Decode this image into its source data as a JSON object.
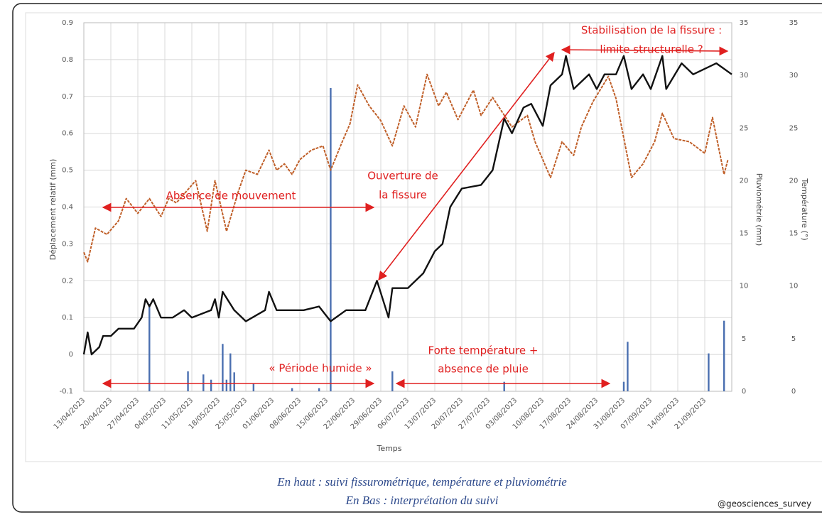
{
  "chart_data": {
    "type": "line",
    "x_label": "Temps",
    "y_label": "Déplacement relatif (mm)",
    "y2_label": "Pluviométrie (mm)",
    "y3_label": "Température (°)",
    "xlim": [
      "13/04/2023",
      "28/09/2023"
    ],
    "xticks": [
      "13/04/2023",
      "20/04/2023",
      "27/04/2023",
      "04/05/2023",
      "11/05/2023",
      "18/05/2023",
      "25/05/2023",
      "01/06/2023",
      "08/06/2023",
      "15/06/2023",
      "22/06/2023",
      "29/06/2023",
      "06/07/2023",
      "13/07/2023",
      "20/07/2023",
      "27/07/2023",
      "03/08/2023",
      "10/08/2023",
      "17/08/2023",
      "24/08/2023",
      "31/08/2023",
      "07/09/2023",
      "14/09/2023",
      "21/09/2023"
    ],
    "ylim": [
      -0.1,
      0.9
    ],
    "yticks": [
      -0.1,
      0,
      0.1,
      0.2,
      0.3,
      0.4,
      0.5,
      0.6,
      0.7,
      0.8,
      0.9
    ],
    "y2lim": [
      0,
      35
    ],
    "y2ticks": [
      0,
      5,
      10,
      15,
      20,
      25,
      30,
      35
    ],
    "y3lim": [
      0,
      35
    ],
    "y3ticks": [
      0,
      5,
      10,
      15,
      20,
      25,
      30,
      35
    ],
    "grid": true,
    "series": [
      {
        "type": "bar",
        "axis": "y2",
        "color": "#4a6fb0",
        "x": [
          "30/04/2023",
          "10/05/2023",
          "14/05/2023",
          "16/05/2023",
          "19/05/2023",
          "20/05/2023",
          "21/05/2023",
          "22/05/2023",
          "27/05/2023",
          "06/06/2023",
          "13/06/2023",
          "16/06/2023",
          "02/07/2023",
          "31/07/2023",
          "31/08/2023",
          "01/09/2023",
          "22/09/2023",
          "26/09/2023"
        ],
        "values": [
          8.3,
          1.9,
          1.6,
          1.1,
          4.5,
          1.1,
          3.6,
          1.8,
          0.7,
          0.3,
          0.3,
          28.8,
          1.9,
          0.9,
          0.9,
          4.7,
          3.6,
          6.7
        ]
      },
      {
        "type": "line",
        "axis": "y3",
        "color": "#c0602a",
        "dashed": true,
        "x": [
          "13/04/2023",
          "14/04/2023",
          "16/04/2023",
          "19/04/2023",
          "22/04/2023",
          "24/04/2023",
          "27/04/2023",
          "30/04/2023",
          "03/05/2023",
          "05/05/2023",
          "07/05/2023",
          "12/05/2023",
          "15/05/2023",
          "17/05/2023",
          "20/05/2023",
          "23/05/2023",
          "25/05/2023",
          "28/05/2023",
          "31/05/2023",
          "02/06/2023",
          "04/06/2023",
          "06/06/2023",
          "08/06/2023",
          "11/06/2023",
          "14/06/2023",
          "16/06/2023",
          "19/06/2023",
          "21/06/2023",
          "23/06/2023",
          "26/06/2023",
          "29/06/2023",
          "02/07/2023",
          "05/07/2023",
          "08/07/2023",
          "11/07/2023",
          "14/07/2023",
          "16/07/2023",
          "19/07/2023",
          "23/07/2023",
          "25/07/2023",
          "28/07/2023",
          "02/08/2023",
          "06/08/2023",
          "08/08/2023",
          "12/08/2023",
          "15/08/2023",
          "18/08/2023",
          "20/08/2023",
          "23/08/2023",
          "27/08/2023",
          "29/08/2023",
          "02/09/2023",
          "05/09/2023",
          "08/09/2023",
          "10/09/2023",
          "13/09/2023",
          "17/09/2023",
          "21/09/2023",
          "23/09/2023",
          "26/09/2023",
          "27/09/2023"
        ],
        "values": [
          13.2,
          12.3,
          15.5,
          14.9,
          16.2,
          18.3,
          16.9,
          18.3,
          16.6,
          18.3,
          17.9,
          20,
          15.2,
          20,
          15.2,
          18.9,
          21,
          20.6,
          22.9,
          21,
          21.6,
          20.6,
          22,
          22.9,
          23.3,
          21,
          23.7,
          25.4,
          29.1,
          27.1,
          25.7,
          23.3,
          27.1,
          25.1,
          30.1,
          27.1,
          28.4,
          25.8,
          28.6,
          26.2,
          27.9,
          25.1,
          26.2,
          23.7,
          20.3,
          23.7,
          22.4,
          25.1,
          27.5,
          29.9,
          27.8,
          20.3,
          21.6,
          23.7,
          26.4,
          24,
          23.7,
          22.6,
          26,
          20.6,
          22
        ]
      },
      {
        "type": "line",
        "axis": "y",
        "color": "#111111",
        "x": [
          "13/04/2023",
          "14/04/2023",
          "15/04/2023",
          "17/04/2023",
          "18/04/2023",
          "20/04/2023",
          "22/04/2023",
          "26/04/2023",
          "28/04/2023",
          "29/04/2023",
          "30/04/2023",
          "01/05/2023",
          "03/05/2023",
          "06/05/2023",
          "09/05/2023",
          "11/05/2023",
          "16/05/2023",
          "17/05/2023",
          "18/05/2023",
          "19/05/2023",
          "22/05/2023",
          "25/05/2023",
          "30/05/2023",
          "31/05/2023",
          "02/06/2023",
          "09/06/2023",
          "13/06/2023",
          "16/06/2023",
          "20/06/2023",
          "25/06/2023",
          "28/06/2023",
          "01/07/2023",
          "02/07/2023",
          "06/07/2023",
          "10/07/2023",
          "13/07/2023",
          "15/07/2023",
          "17/07/2023",
          "20/07/2023",
          "25/07/2023",
          "28/07/2023",
          "31/07/2023",
          "02/08/2023",
          "05/08/2023",
          "07/08/2023",
          "10/08/2023",
          "12/08/2023",
          "15/08/2023",
          "16/08/2023",
          "18/08/2023",
          "22/08/2023",
          "24/08/2023",
          "26/08/2023",
          "29/08/2023",
          "31/08/2023",
          "02/09/2023",
          "05/09/2023",
          "07/09/2023",
          "10/09/2023",
          "11/09/2023",
          "15/09/2023",
          "18/09/2023",
          "24/09/2023",
          "28/09/2023"
        ],
        "values": [
          0,
          0.06,
          0,
          0.02,
          0.05,
          0.05,
          0.07,
          0.07,
          0.1,
          0.15,
          0.13,
          0.15,
          0.1,
          0.1,
          0.12,
          0.1,
          0.12,
          0.15,
          0.1,
          0.17,
          0.12,
          0.09,
          0.12,
          0.17,
          0.12,
          0.12,
          0.13,
          0.09,
          0.12,
          0.12,
          0.2,
          0.1,
          0.18,
          0.18,
          0.22,
          0.28,
          0.3,
          0.4,
          0.45,
          0.46,
          0.5,
          0.64,
          0.6,
          0.67,
          0.68,
          0.62,
          0.73,
          0.76,
          0.81,
          0.72,
          0.76,
          0.72,
          0.76,
          0.76,
          0.81,
          0.72,
          0.76,
          0.72,
          0.81,
          0.72,
          0.79,
          0.76,
          0.79,
          0.76
        ]
      }
    ],
    "annotations": [
      {
        "lines": [
          "Absence de mouvement"
        ]
      },
      {
        "lines": [
          "Ouverture de",
          "la fissure"
        ]
      },
      {
        "lines": [
          "Stabilisation de la fissure :",
          "limite structurelle ?"
        ]
      },
      {
        "lines": [
          "« Période humide »"
        ]
      },
      {
        "lines": [
          "Forte température +",
          "absence de pluie"
        ]
      }
    ]
  },
  "caption": [
    "En haut : suivi fissurométrique, température et pluviométrie",
    "En Bas : interprétation du suivi"
  ],
  "credit": "@geosciences_survey"
}
